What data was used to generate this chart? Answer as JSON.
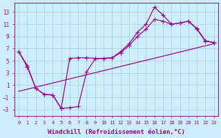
{
  "xlabel": "Windchill (Refroidissement éolien,°C)",
  "background_color": "#cceeff",
  "grid_color": "#aacccc",
  "line_color": "#990099",
  "xlim": [
    -0.5,
    23.5
  ],
  "ylim": [
    -4,
    14.5
  ],
  "xticks": [
    0,
    1,
    2,
    3,
    4,
    5,
    6,
    7,
    8,
    9,
    10,
    11,
    12,
    13,
    14,
    15,
    16,
    17,
    18,
    19,
    20,
    21,
    22,
    23
  ],
  "yticks": [
    -3,
    -1,
    1,
    3,
    5,
    7,
    9,
    11,
    13
  ],
  "series1_x": [
    0,
    1,
    2,
    3,
    4,
    5,
    6,
    7,
    8,
    9,
    10,
    11,
    12,
    13,
    14,
    15,
    16,
    17,
    18,
    19,
    20,
    21,
    22,
    23
  ],
  "series1_y": [
    6.5,
    4.0,
    0.5,
    -0.5,
    -0.6,
    -2.8,
    -2.7,
    -2.5,
    3.2,
    5.3,
    5.4,
    5.5,
    6.5,
    7.8,
    9.7,
    11.0,
    13.8,
    12.5,
    11.0,
    11.2,
    11.5,
    10.2,
    8.2,
    8.0
  ],
  "series2_x": [
    0,
    23
  ],
  "series2_y": [
    0.0,
    7.8
  ],
  "series3_x": [
    0,
    1,
    2,
    3,
    4,
    5,
    6,
    7,
    8,
    9,
    10,
    11,
    12,
    13,
    14,
    15,
    16,
    17,
    18,
    19,
    20,
    21,
    22,
    23
  ],
  "series3_y": [
    6.5,
    4.2,
    0.5,
    -0.5,
    -0.6,
    -2.8,
    5.4,
    5.5,
    5.5,
    5.4,
    5.4,
    5.5,
    6.3,
    7.5,
    9.0,
    10.2,
    11.8,
    11.5,
    11.0,
    11.2,
    11.5,
    10.3,
    8.3,
    8.0
  ],
  "fontsize_xlabel": 6.5,
  "marker": "+",
  "marker_size": 4.0,
  "line_width": 0.9
}
